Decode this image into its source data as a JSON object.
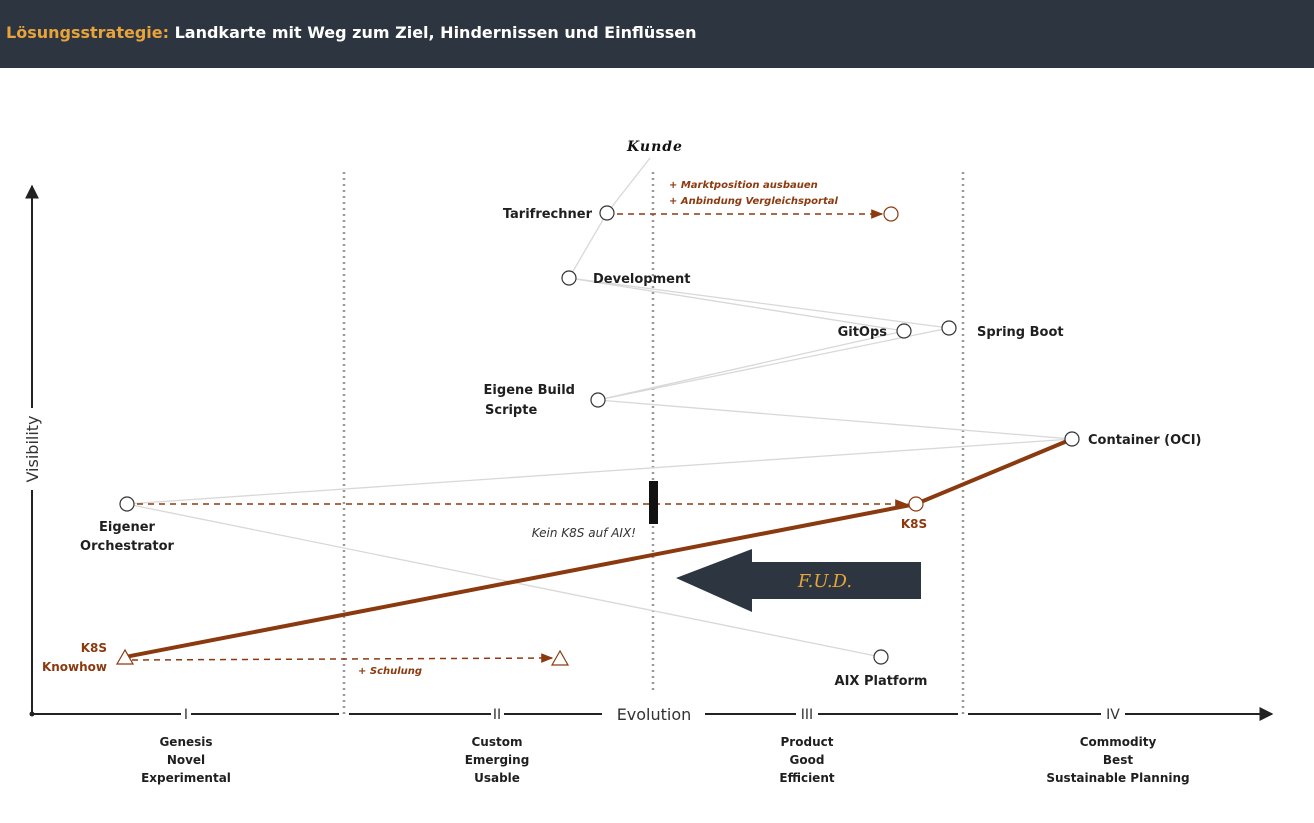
{
  "header": {
    "accent_label": "Lösungsstrategie:",
    "title": "Landkarte mit Weg zum Ziel, Hindernissen und Einflüssen"
  },
  "axes": {
    "y_label": "Visibility",
    "x_label": "Evolution",
    "stage_numerals": [
      "I",
      "II",
      "III",
      "IV"
    ],
    "stages": [
      {
        "line1": "Genesis",
        "line2": "Novel",
        "line3": "Experimental"
      },
      {
        "line1": "Custom",
        "line2": "Emerging",
        "line3": "Usable"
      },
      {
        "line1": "Product",
        "line2": "Good",
        "line3": "Efficient"
      },
      {
        "line1": "Commodity",
        "line2": "Best",
        "line3": "Sustainable Planning"
      }
    ]
  },
  "anchor": "Kunde",
  "components": {
    "tarifrechner": "Tarifrechner",
    "development": "Development",
    "gitops": "GitOps",
    "spring_boot": "Spring Boot",
    "build_line1": "Eigene Build",
    "build_line2": "Scripte",
    "container": "Container (OCI)",
    "orchestrator_line1": "Eigener",
    "orchestrator_line2": "Orchestrator",
    "k8s": "K8S",
    "knowhow_line1": "K8S",
    "knowhow_line2": "Knowhow",
    "aix_platform": "AIX Platform"
  },
  "annotations": {
    "marktposition": "+ Marktposition ausbauen",
    "vergleichsportal": "+ Anbindung Vergleichsportal",
    "schulung": "+ Schulung",
    "kein_k8s": "Kein K8S auf AIX!",
    "fud": "F.U.D."
  },
  "colors": {
    "header_bg": "#2d3640",
    "accent": "#e8a33a",
    "strategy_red": "#8b3a10",
    "link_gray": "#d8d8d8",
    "inertia_arrow": "#2d3640"
  }
}
